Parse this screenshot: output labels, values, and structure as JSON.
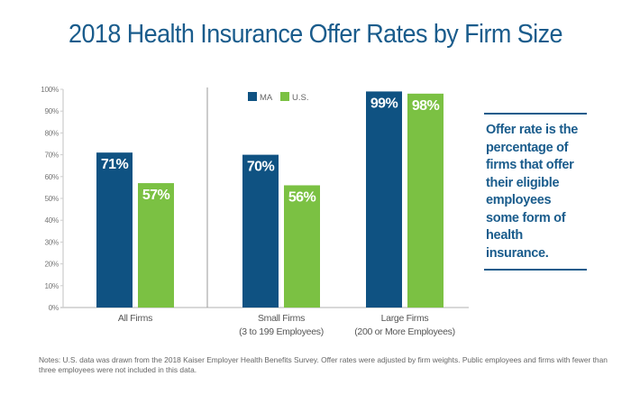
{
  "title": "2018 Health Insurance Offer Rates by Firm Size",
  "callout": "Offer rate is the percentage of firms that offer their eligible employees some form of health insurance.",
  "notes": "Notes: U.S. data was drawn from the 2018 Kaiser Employer Health Benefits Survey. Offer rates were adjusted by firm weights. Public employees and firms with fewer than three employees were not included in this data.",
  "colors": {
    "ma": "#0f5282",
    "us": "#7bc143",
    "title": "#1a5c8c",
    "axis": "#cccccc",
    "tick_text": "#777777",
    "category_text": "#555555"
  },
  "chart_data": {
    "type": "bar",
    "title": "2018 Health Insurance Offer Rates by Firm Size",
    "xlabel": "",
    "ylabel": "",
    "ylim": [
      0,
      100
    ],
    "yticks": [
      0,
      10,
      20,
      30,
      40,
      50,
      60,
      70,
      80,
      90,
      100
    ],
    "ytick_suffix": "%",
    "grid": false,
    "legend": {
      "position": "top-center",
      "entries": [
        "MA",
        "U.S."
      ]
    },
    "categories": [
      {
        "line1": "All Firms",
        "line2": ""
      },
      {
        "line1": "Small Firms",
        "line2": "(3 to 199 Employees)"
      },
      {
        "line1": "Large Firms",
        "line2": "(200 or More Employees)"
      }
    ],
    "series": [
      {
        "name": "MA",
        "values": [
          71,
          70,
          99
        ],
        "labels": [
          "71%",
          "70%",
          "99%"
        ]
      },
      {
        "name": "U.S.",
        "values": [
          57,
          56,
          98
        ],
        "labels": [
          "57%",
          "56%",
          "98%"
        ]
      }
    ]
  }
}
